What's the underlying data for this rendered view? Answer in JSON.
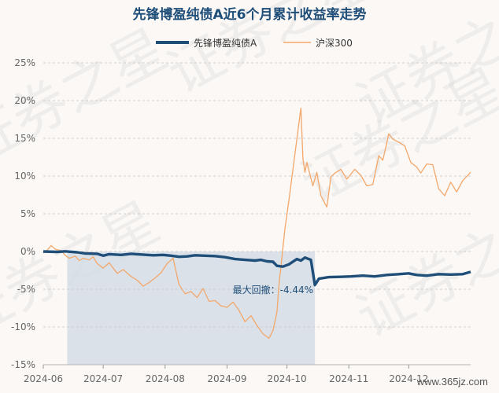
{
  "chart_data": {
    "type": "line",
    "title": "先锋博盈纯债A近6个月累计收益率走势",
    "series": [
      {
        "name": "先锋博盈纯债A",
        "color": "#1f4e79",
        "points": [
          [
            "2024-06-01",
            0.0
          ],
          [
            "2024-06-08",
            -0.05
          ],
          [
            "2024-06-12",
            0.02
          ],
          [
            "2024-06-18",
            -0.1
          ],
          [
            "2024-06-22",
            -0.25
          ],
          [
            "2024-06-28",
            -0.3
          ],
          [
            "2024-07-01",
            -0.55
          ],
          [
            "2024-07-04",
            -0.35
          ],
          [
            "2024-07-10",
            -0.45
          ],
          [
            "2024-07-15",
            -0.3
          ],
          [
            "2024-07-20",
            -0.4
          ],
          [
            "2024-07-26",
            -0.5
          ],
          [
            "2024-07-31",
            -0.45
          ],
          [
            "2024-08-04",
            -0.55
          ],
          [
            "2024-08-08",
            -0.7
          ],
          [
            "2024-08-12",
            -0.65
          ],
          [
            "2024-08-16",
            -0.5
          ],
          [
            "2024-08-21",
            -0.55
          ],
          [
            "2024-08-26",
            -0.6
          ],
          [
            "2024-08-31",
            -0.75
          ],
          [
            "2024-09-05",
            -1.0
          ],
          [
            "2024-09-10",
            -1.1
          ],
          [
            "2024-09-15",
            -1.2
          ],
          [
            "2024-09-18",
            -1.1
          ],
          [
            "2024-09-21",
            -1.3
          ],
          [
            "2024-09-24",
            -1.35
          ],
          [
            "2024-09-26",
            -1.9
          ],
          [
            "2024-09-29",
            -2.0
          ],
          [
            "2024-10-02",
            -1.7
          ],
          [
            "2024-10-06",
            -1.0
          ],
          [
            "2024-10-08",
            -1.2
          ],
          [
            "2024-10-10",
            -0.8
          ],
          [
            "2024-10-13",
            -1.1
          ],
          [
            "2024-10-15",
            -4.44
          ],
          [
            "2024-10-17",
            -3.6
          ],
          [
            "2024-10-22",
            -3.4
          ],
          [
            "2024-10-28",
            -3.35
          ],
          [
            "2024-11-02",
            -3.3
          ],
          [
            "2024-11-08",
            -3.2
          ],
          [
            "2024-11-14",
            -3.3
          ],
          [
            "2024-11-20",
            -3.1
          ],
          [
            "2024-11-26",
            -3.0
          ],
          [
            "2024-12-01",
            -2.9
          ],
          [
            "2024-12-05",
            -3.1
          ],
          [
            "2024-12-10",
            -3.2
          ],
          [
            "2024-12-16",
            -3.0
          ],
          [
            "2024-12-22",
            -3.05
          ],
          [
            "2024-12-28",
            -3.0
          ],
          [
            "2025-01-01",
            -2.7
          ]
        ]
      },
      {
        "name": "沪深300",
        "color": "#f4a76a",
        "points": [
          [
            "2024-06-01",
            -0.2
          ],
          [
            "2024-06-03",
            0.2
          ],
          [
            "2024-06-05",
            0.8
          ],
          [
            "2024-06-07",
            0.3
          ],
          [
            "2024-06-10",
            0.1
          ],
          [
            "2024-06-12",
            -0.5
          ],
          [
            "2024-06-14",
            -0.9
          ],
          [
            "2024-06-17",
            -0.6
          ],
          [
            "2024-06-19",
            -1.2
          ],
          [
            "2024-06-21",
            -0.9
          ],
          [
            "2024-06-24",
            -1.1
          ],
          [
            "2024-06-26",
            -0.7
          ],
          [
            "2024-06-28",
            -1.6
          ],
          [
            "2024-07-01",
            -2.2
          ],
          [
            "2024-07-04",
            -1.5
          ],
          [
            "2024-07-08",
            -2.9
          ],
          [
            "2024-07-11",
            -2.4
          ],
          [
            "2024-07-15",
            -3.3
          ],
          [
            "2024-07-18",
            -3.8
          ],
          [
            "2024-07-21",
            -4.6
          ],
          [
            "2024-07-24",
            -4.1
          ],
          [
            "2024-07-27",
            -3.5
          ],
          [
            "2024-07-30",
            -2.8
          ],
          [
            "2024-08-02",
            -1.6
          ],
          [
            "2024-08-05",
            -0.9
          ],
          [
            "2024-08-08",
            -4.4
          ],
          [
            "2024-08-11",
            -5.6
          ],
          [
            "2024-08-14",
            -5.3
          ],
          [
            "2024-08-17",
            -6.1
          ],
          [
            "2024-08-20",
            -4.9
          ],
          [
            "2024-08-23",
            -6.6
          ],
          [
            "2024-08-26",
            -6.5
          ],
          [
            "2024-08-29",
            -7.2
          ],
          [
            "2024-09-01",
            -7.4
          ],
          [
            "2024-09-04",
            -6.7
          ],
          [
            "2024-09-07",
            -7.8
          ],
          [
            "2024-09-10",
            -9.3
          ],
          [
            "2024-09-13",
            -8.5
          ],
          [
            "2024-09-16",
            -9.8
          ],
          [
            "2024-09-19",
            -10.9
          ],
          [
            "2024-09-22",
            -11.5
          ],
          [
            "2024-09-24",
            -10.5
          ],
          [
            "2024-09-26",
            -8.0
          ],
          [
            "2024-09-27",
            -4.5
          ],
          [
            "2024-09-30",
            3.0
          ],
          [
            "2024-10-02",
            6.8
          ],
          [
            "2024-10-08",
            19.0
          ],
          [
            "2024-10-09",
            12.3
          ],
          [
            "2024-10-10",
            10.5
          ],
          [
            "2024-10-11",
            11.8
          ],
          [
            "2024-10-14",
            8.7
          ],
          [
            "2024-10-16",
            10.5
          ],
          [
            "2024-10-18",
            7.4
          ],
          [
            "2024-10-21",
            5.9
          ],
          [
            "2024-10-23",
            9.9
          ],
          [
            "2024-10-25",
            10.4
          ],
          [
            "2024-10-28",
            10.9
          ],
          [
            "2024-10-31",
            9.6
          ],
          [
            "2024-11-04",
            10.9
          ],
          [
            "2024-11-07",
            10.1
          ],
          [
            "2024-11-10",
            8.7
          ],
          [
            "2024-11-13",
            8.9
          ],
          [
            "2024-11-16",
            12.7
          ],
          [
            "2024-11-18",
            12.1
          ],
          [
            "2024-11-21",
            15.6
          ],
          [
            "2024-11-23",
            14.9
          ],
          [
            "2024-11-26",
            14.5
          ],
          [
            "2024-11-29",
            14.0
          ],
          [
            "2024-12-02",
            11.8
          ],
          [
            "2024-12-05",
            11.2
          ],
          [
            "2024-12-07",
            10.4
          ],
          [
            "2024-12-10",
            11.6
          ],
          [
            "2024-12-13",
            11.5
          ],
          [
            "2024-12-16",
            8.3
          ],
          [
            "2024-12-19",
            7.4
          ],
          [
            "2024-12-22",
            9.2
          ],
          [
            "2024-12-25",
            7.9
          ],
          [
            "2024-12-28",
            9.4
          ],
          [
            "2025-01-01",
            10.5
          ]
        ]
      }
    ],
    "y_ticks": [
      "25%",
      "20%",
      "15%",
      "10%",
      "5%",
      "0%",
      "-5%",
      "-10%",
      "-15%"
    ],
    "ylim": [
      -15,
      25
    ],
    "x_ticks": [
      "2024-06",
      "2024-07",
      "2024-08",
      "2024-09",
      "2024-10",
      "2024-11",
      "2024-12"
    ],
    "x_range": [
      "2024-06-01",
      "2025-01-01"
    ],
    "drawdown": {
      "label": "最大回撤：-4.44%",
      "start": "2024-06-13",
      "end": "2024-10-15",
      "min": -4.44,
      "fill": "#d4dde6"
    },
    "legend_position": "top-center",
    "grid": true
  },
  "watermark": {
    "brand": "证券之星",
    "site": "www.365jz.com"
  }
}
